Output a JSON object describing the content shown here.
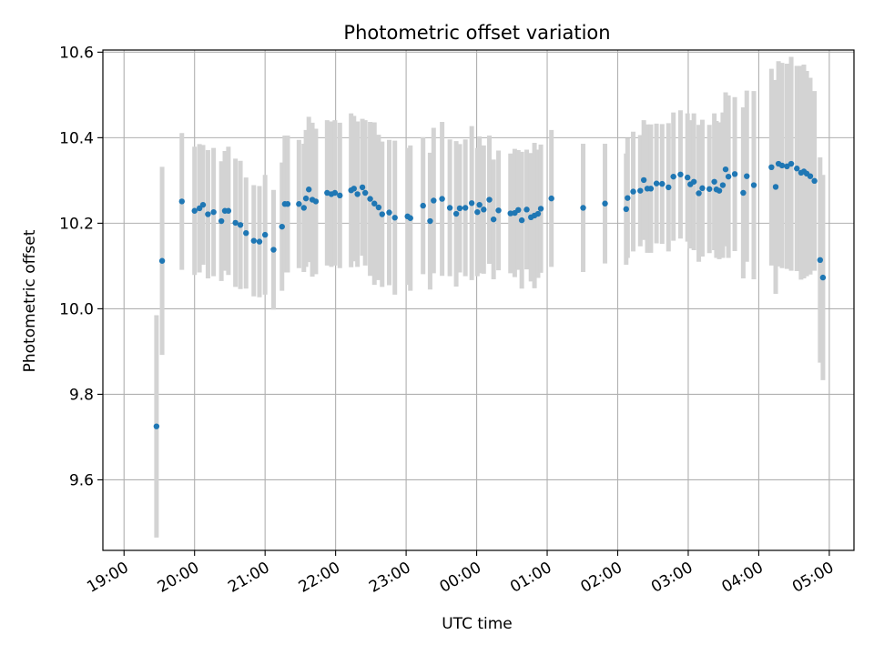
{
  "chart_data": {
    "type": "scatter",
    "title": "Photometric offset variation",
    "xlabel": "UTC time",
    "ylabel": "Photometric offset",
    "x_unit": "hours after 19:00 UTC",
    "xlim": [
      -0.3,
      10.35
    ],
    "ylim": [
      9.435,
      10.605
    ],
    "x_ticks": [
      0,
      1,
      2,
      3,
      4,
      5,
      6,
      7,
      8,
      9,
      10
    ],
    "x_tick_labels": [
      "19:00",
      "20:00",
      "21:00",
      "22:00",
      "23:00",
      "00:00",
      "01:00",
      "02:00",
      "03:00",
      "04:00",
      "05:00"
    ],
    "y_ticks": [
      9.6,
      9.8,
      10.0,
      10.2,
      10.4,
      10.6
    ],
    "y_tick_labels": [
      "9.6",
      "9.8",
      "10.0",
      "10.2",
      "10.4",
      "10.6"
    ],
    "grid": true,
    "marker_color": "#1f77b4",
    "errorbar_color": "#d3d3d3",
    "series": [
      {
        "x": [
          0.46,
          0.54,
          0.82,
          1.0,
          1.07,
          1.12,
          1.19,
          1.27,
          1.38,
          1.43,
          1.48,
          1.58,
          1.65,
          1.73,
          1.84,
          1.92,
          2.0,
          2.12,
          2.24,
          2.28,
          2.32,
          2.48,
          2.55,
          2.58,
          2.62,
          2.67,
          2.72,
          2.88,
          2.94,
          2.99,
          3.06,
          3.22,
          3.26,
          3.31,
          3.38,
          3.42,
          3.49,
          3.55,
          3.61,
          3.66,
          3.76,
          3.84,
          4.02,
          4.06,
          4.24,
          4.34,
          4.39,
          4.51,
          4.62,
          4.71,
          4.76,
          4.84,
          4.93,
          5.01,
          5.04,
          5.1,
          5.18,
          5.24,
          5.31,
          5.48,
          5.54,
          5.59,
          5.64,
          5.71,
          5.77,
          5.82,
          5.87,
          5.91,
          6.06,
          6.51,
          6.82,
          7.12,
          7.14,
          7.22,
          7.32,
          7.37,
          7.42,
          7.47,
          7.55,
          7.63,
          7.72,
          7.79,
          7.89,
          7.99,
          8.03,
          8.08,
          8.15,
          8.2,
          8.3,
          8.37,
          8.4,
          8.44,
          8.49,
          8.53,
          8.57,
          8.66,
          8.78,
          8.83,
          8.93,
          9.18,
          9.24,
          9.28,
          9.33,
          9.4,
          9.46,
          9.54,
          9.6,
          9.64,
          9.68,
          9.73,
          9.79,
          9.87,
          9.91
        ],
        "y": [
          9.725,
          10.112,
          10.251,
          10.229,
          10.235,
          10.243,
          10.221,
          10.226,
          10.205,
          10.229,
          10.229,
          10.201,
          10.196,
          10.177,
          10.159,
          10.157,
          10.173,
          10.138,
          10.192,
          10.245,
          10.245,
          10.245,
          10.236,
          10.258,
          10.279,
          10.255,
          10.251,
          10.271,
          10.268,
          10.271,
          10.265,
          10.277,
          10.281,
          10.268,
          10.284,
          10.271,
          10.257,
          10.246,
          10.237,
          10.221,
          10.225,
          10.213,
          10.216,
          10.212,
          10.241,
          10.205,
          10.253,
          10.257,
          10.236,
          10.222,
          10.235,
          10.236,
          10.247,
          10.226,
          10.243,
          10.232,
          10.255,
          10.209,
          10.23,
          10.223,
          10.224,
          10.231,
          10.207,
          10.232,
          10.214,
          10.218,
          10.222,
          10.234,
          10.258,
          10.236,
          10.246,
          10.233,
          10.259,
          10.274,
          10.276,
          10.301,
          10.281,
          10.281,
          10.293,
          10.292,
          10.284,
          10.309,
          10.314,
          10.307,
          10.291,
          10.297,
          10.27,
          10.282,
          10.28,
          10.297,
          10.279,
          10.276,
          10.289,
          10.326,
          10.309,
          10.315,
          10.271,
          10.31,
          10.289,
          10.331,
          10.285,
          10.339,
          10.335,
          10.333,
          10.339,
          10.328,
          10.318,
          10.321,
          10.316,
          10.31,
          10.299,
          10.114,
          10.073
        ],
        "yerr": [
          0.26,
          0.22,
          0.16,
          0.15,
          0.15,
          0.14,
          0.15,
          0.15,
          0.14,
          0.14,
          0.15,
          0.15,
          0.15,
          0.13,
          0.13,
          0.13,
          0.14,
          0.14,
          0.15,
          0.16,
          0.16,
          0.15,
          0.15,
          0.16,
          0.17,
          0.18,
          0.17,
          0.17,
          0.17,
          0.17,
          0.17,
          0.18,
          0.17,
          0.17,
          0.16,
          0.17,
          0.18,
          0.19,
          0.17,
          0.17,
          0.17,
          0.18,
          0.16,
          0.17,
          0.16,
          0.16,
          0.17,
          0.18,
          0.16,
          0.17,
          0.15,
          0.16,
          0.18,
          0.15,
          0.16,
          0.15,
          0.15,
          0.14,
          0.14,
          0.14,
          0.15,
          0.14,
          0.16,
          0.14,
          0.15,
          0.17,
          0.15,
          0.15,
          0.16,
          0.15,
          0.14,
          0.13,
          0.14,
          0.14,
          0.13,
          0.14,
          0.15,
          0.15,
          0.14,
          0.14,
          0.15,
          0.15,
          0.15,
          0.15,
          0.15,
          0.16,
          0.16,
          0.16,
          0.15,
          0.16,
          0.16,
          0.16,
          0.17,
          0.18,
          0.19,
          0.18,
          0.2,
          0.2,
          0.22,
          0.23,
          0.25,
          0.24,
          0.24,
          0.24,
          0.25,
          0.24,
          0.25,
          0.25,
          0.24,
          0.23,
          0.21,
          0.24,
          0.24
        ]
      }
    ]
  }
}
